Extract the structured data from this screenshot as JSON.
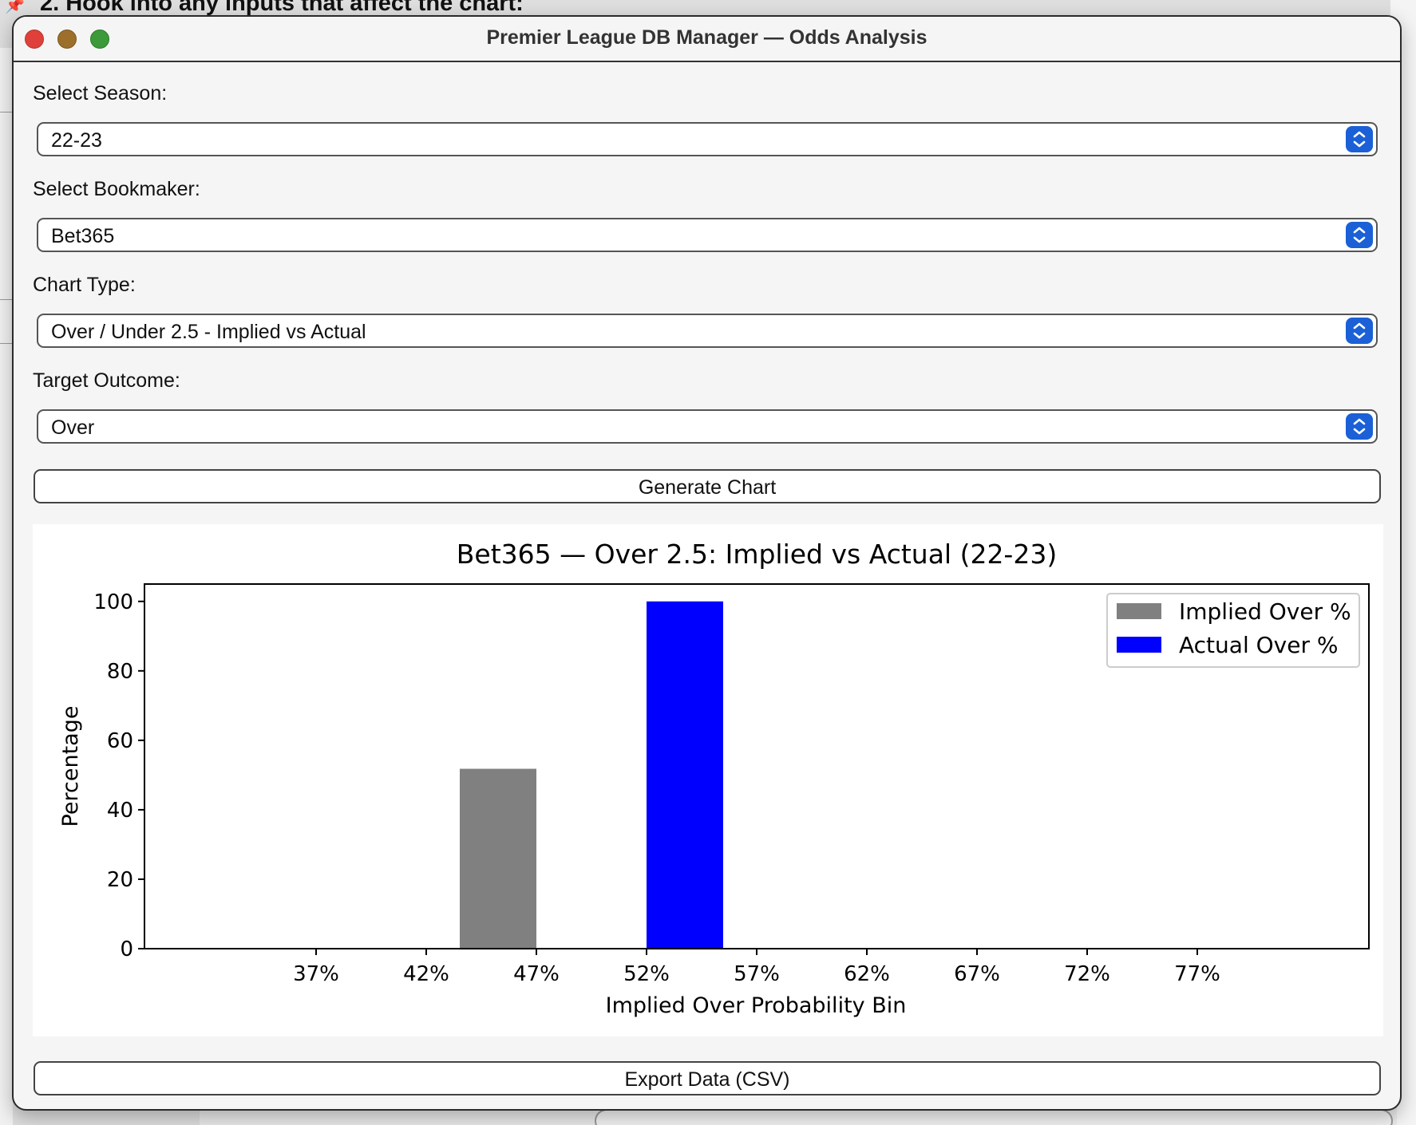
{
  "background": {
    "heading": "2. Hook into any inputs that affect the chart:"
  },
  "window": {
    "title": "Premier League DB Manager — Odds Analysis"
  },
  "form": {
    "season": {
      "label": "Select Season:",
      "value": "22-23"
    },
    "bookmaker": {
      "label": "Select Bookmaker:",
      "value": "Bet365"
    },
    "chart_type": {
      "label": "Chart Type:",
      "value": "Over / Under 2.5 - Implied vs Actual"
    },
    "target": {
      "label": "Target Outcome:",
      "value": "Over"
    },
    "generate_label": "Generate Chart",
    "export_label": "Export Data (CSV)"
  },
  "colors": {
    "implied": "#808080",
    "actual": "#0000ff",
    "stepper": "#1b60d6"
  },
  "chart_data": {
    "type": "bar",
    "title": "Bet365 — Over 2.5: Implied vs Actual (22-23)",
    "xlabel": "Implied Over Probability Bin",
    "ylabel": "Percentage",
    "categories": [
      "37%",
      "42%",
      "47%",
      "52%",
      "57%",
      "62%",
      "67%",
      "72%",
      "77%"
    ],
    "ylim": [
      0,
      105
    ],
    "yticks": [
      0,
      20,
      40,
      60,
      80,
      100
    ],
    "grid": false,
    "legend_position": "top-right",
    "series": [
      {
        "name": "Implied Over %",
        "color": "#808080",
        "values": [
          null,
          null,
          51.8,
          null,
          null,
          null,
          null,
          null,
          null
        ]
      },
      {
        "name": "Actual Over %",
        "color": "#0000ff",
        "values": [
          null,
          null,
          null,
          100,
          null,
          null,
          null,
          null,
          null
        ]
      }
    ]
  }
}
